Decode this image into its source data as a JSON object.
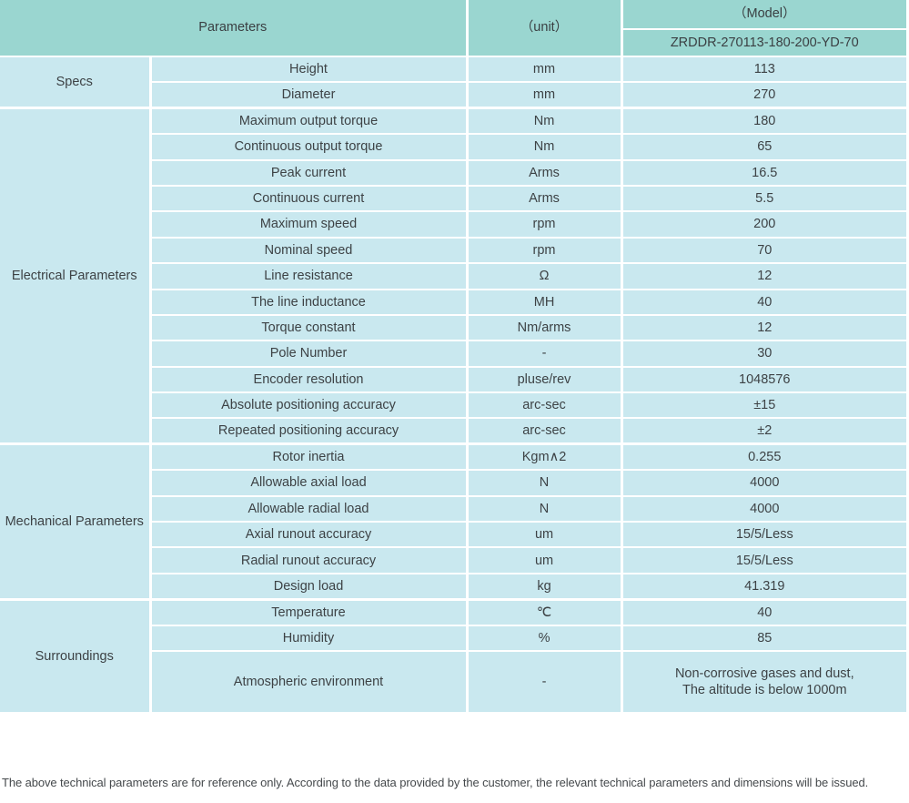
{
  "table": {
    "header": {
      "parameters_label": "Parameters",
      "unit_label": "（unit）",
      "model_label": "（Model）",
      "model_number": "ZRDDR-270113-180-200-YD-70"
    },
    "groups": [
      {
        "name": "Specs",
        "rows": [
          {
            "param": "Height",
            "unit": "mm",
            "value": "113"
          },
          {
            "param": "Diameter",
            "unit": "mm",
            "value": "270"
          }
        ]
      },
      {
        "name": "Electrical Parameters",
        "rows": [
          {
            "param": "Maximum output torque",
            "unit": "Nm",
            "value": "180"
          },
          {
            "param": "Continuous output torque",
            "unit": "Nm",
            "value": "65"
          },
          {
            "param": "Peak current",
            "unit": "Arms",
            "value": "16.5"
          },
          {
            "param": "Continuous current",
            "unit": "Arms",
            "value": "5.5"
          },
          {
            "param": "Maximum speed",
            "unit": "rpm",
            "value": "200"
          },
          {
            "param": "Nominal speed",
            "unit": "rpm",
            "value": "70"
          },
          {
            "param": "Line resistance",
            "unit": "Ω",
            "value": "12"
          },
          {
            "param": "The line inductance",
            "unit": "MH",
            "value": "40"
          },
          {
            "param": "Torque constant",
            "unit": "Nm/arms",
            "value": "12"
          },
          {
            "param": "Pole Number",
            "unit": "-",
            "value": "30"
          },
          {
            "param": "Encoder resolution",
            "unit": "pluse/rev",
            "value": "1048576"
          },
          {
            "param": "Absolute positioning accuracy",
            "unit": "arc-sec",
            "value": "±15"
          },
          {
            "param": "Repeated positioning accuracy",
            "unit": "arc-sec",
            "value": "±2"
          }
        ]
      },
      {
        "name": "Mechanical Parameters",
        "rows": [
          {
            "param": "Rotor inertia",
            "unit": "Kgm∧2",
            "value": "0.255"
          },
          {
            "param": "Allowable axial load",
            "unit": "N",
            "value": "4000"
          },
          {
            "param": "Allowable radial load",
            "unit": "N",
            "value": "4000"
          },
          {
            "param": "Axial runout accuracy",
            "unit": "um",
            "value": "15/5/Less"
          },
          {
            "param": "Radial runout accuracy",
            "unit": "um",
            "value": "15/5/Less"
          },
          {
            "param": "Design load",
            "unit": "kg",
            "value": "41.319"
          }
        ]
      },
      {
        "name": "Surroundings",
        "rows": [
          {
            "param": "Temperature",
            "unit": "℃",
            "value": "40"
          },
          {
            "param": "Humidity",
            "unit": "%",
            "value": "85"
          },
          {
            "param": "Atmospheric environment",
            "unit": "-",
            "value": "Non-corrosive gases and dust,\nThe altitude is below 1000m"
          }
        ]
      }
    ],
    "footnote": "The above technical parameters are for reference only. According to the data provided by the customer, the relevant technical parameters and dimensions will be issued."
  },
  "colors": {
    "header_background": "#9ad6d0",
    "body_background": "#c9e8ef",
    "grid_lines": "#ffffff",
    "text": "#3d4245"
  }
}
